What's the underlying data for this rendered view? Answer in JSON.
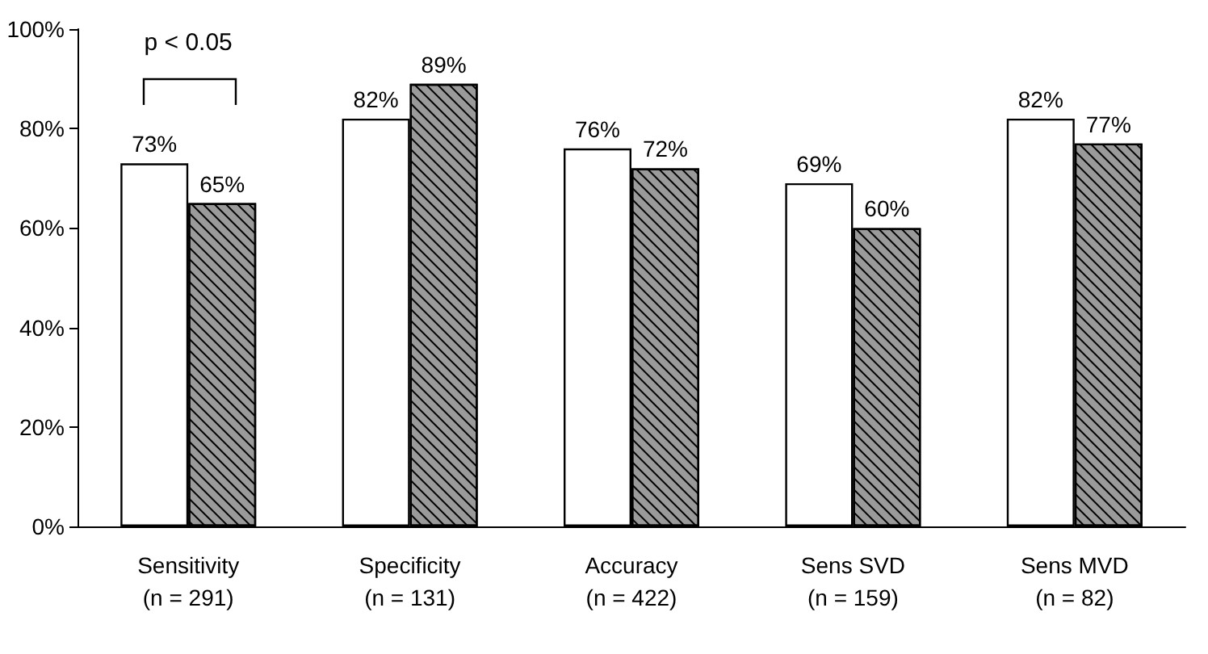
{
  "chart_data": {
    "type": "bar",
    "categories": [
      "Sensitivity\n(n = 291)",
      "Specificity\n(n = 131)",
      "Accuracy\n(n = 422)",
      "Sens SVD\n(n = 159)",
      "Sens MVD\n(n = 82)"
    ],
    "series": [
      {
        "color": "#ffffff",
        "values": [
          73,
          82,
          76,
          69,
          82
        ],
        "value_labels": [
          "73%",
          "82%",
          "76%",
          "69%",
          "82%"
        ]
      },
      {
        "color": "#9a9a9a",
        "values": [
          65,
          89,
          72,
          60,
          77
        ],
        "value_labels": [
          "65%",
          "89%",
          "72%",
          "60%",
          "77%"
        ]
      }
    ],
    "ylim": [
      0,
      100
    ],
    "yticks": [
      {
        "value": 0,
        "label": "0%"
      },
      {
        "value": 20,
        "label": "20%"
      },
      {
        "value": 40,
        "label": "40%"
      },
      {
        "value": 60,
        "label": "60%"
      },
      {
        "value": 80,
        "label": "80%"
      },
      {
        "value": 100,
        "label": "100%"
      }
    ],
    "grid": false,
    "annotations": [
      "p < 0.05"
    ]
  }
}
